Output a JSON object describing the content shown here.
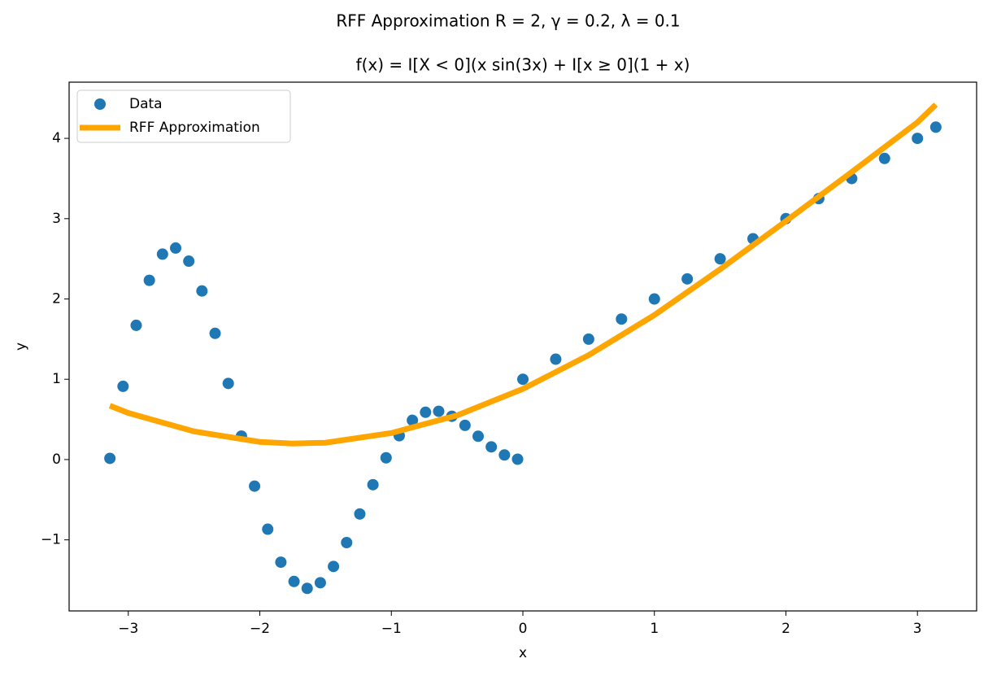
{
  "chart_data": {
    "type": "scatter-line",
    "title": "RFF Approximation R = 2, γ = 0.2, λ = 0.1",
    "subtitle": "f(x) = I[X < 0](x sin(3x) + I[x ≥ 0](1 + x)",
    "xlabel": "x",
    "ylabel": "y",
    "xlim": [
      -3.45,
      3.45
    ],
    "ylim": [
      -1.885,
      4.7
    ],
    "xticks": [
      {
        "value": -3,
        "label": "−3"
      },
      {
        "value": -2,
        "label": "−2"
      },
      {
        "value": -1,
        "label": "−1"
      },
      0,
      1,
      2,
      3
    ],
    "yticks": [
      {
        "value": -1,
        "label": "−1"
      },
      0,
      1,
      2,
      3,
      4
    ],
    "legend": "upper left",
    "series": [
      {
        "name": "Data",
        "kind": "scatter",
        "color": "#1f77b4",
        "x": [
          -3.14,
          -3.04,
          -2.94,
          -2.84,
          -2.74,
          -2.64,
          -2.54,
          -2.44,
          -2.34,
          -2.24,
          -2.14,
          -2.04,
          -1.94,
          -1.84,
          -1.74,
          -1.64,
          -1.54,
          -1.44,
          -1.34,
          -1.24,
          -1.14,
          -1.04,
          -0.94,
          -0.84,
          -0.74,
          -0.64,
          -0.54,
          -0.44,
          -0.34,
          -0.24,
          -0.14,
          -0.04,
          0,
          0.25,
          0.5,
          0.75,
          1,
          1.25,
          1.5,
          1.75,
          2,
          2.25,
          2.5,
          2.75,
          3,
          3.14
        ],
        "values": [
          0.015,
          0.912,
          1.672,
          2.232,
          2.558,
          2.634,
          2.471,
          2.1,
          1.572,
          0.948,
          0.292,
          -0.331,
          -0.867,
          -1.278,
          -1.518,
          -1.604,
          -1.534,
          -1.331,
          -1.034,
          -0.678,
          -0.313,
          0.022,
          0.297,
          0.489,
          0.589,
          0.601,
          0.539,
          0.426,
          0.29,
          0.158,
          0.057,
          0.005,
          1,
          1.25,
          1.5,
          1.75,
          2,
          2.25,
          2.5,
          2.75,
          3,
          3.25,
          3.5,
          3.75,
          4,
          4.14
        ]
      },
      {
        "name": "RFF Approximation",
        "kind": "line",
        "color": "#ffa500",
        "x": [
          -3.14,
          -3,
          -2.5,
          -2,
          -1.75,
          -1.5,
          -1,
          -0.5,
          0,
          0.5,
          1,
          1.5,
          2,
          2.5,
          3,
          3.14
        ],
        "values": [
          0.67,
          0.58,
          0.35,
          0.22,
          0.2,
          0.21,
          0.33,
          0.55,
          0.88,
          1.3,
          1.8,
          2.37,
          2.97,
          3.58,
          4.2,
          4.42
        ]
      }
    ]
  }
}
